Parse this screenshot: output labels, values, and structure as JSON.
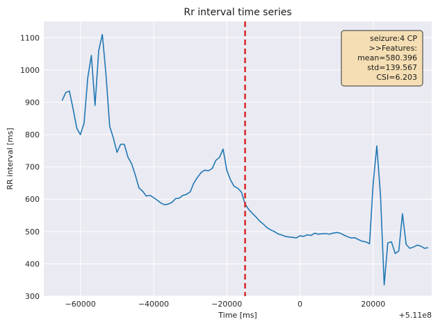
{
  "chart_data": {
    "type": "line",
    "title": "Rr interval time series",
    "xlabel": "Time [ms]",
    "ylabel": "RR interval [ms]",
    "x_offset_label": "+5.11e8",
    "xlim": [
      -70000,
      36000
    ],
    "ylim": [
      300,
      1150
    ],
    "xticks": [
      -60000,
      -40000,
      -20000,
      0,
      20000
    ],
    "xtick_labels": [
      "−60000",
      "−40000",
      "−20000",
      "0",
      "20000"
    ],
    "yticks": [
      300,
      400,
      500,
      600,
      700,
      800,
      900,
      1000,
      1100
    ],
    "ytick_labels": [
      "300",
      "400",
      "500",
      "600",
      "700",
      "800",
      "900",
      "1000",
      "1100"
    ],
    "grid": true,
    "background": "#eaeaf2",
    "line_color": "#1f77b4",
    "marker": {
      "x": -15000,
      "color": "#d62728",
      "style": "dashed"
    },
    "annotation": {
      "lines": [
        "seizure:4 CP",
        ">>Features:",
        "mean=580.396",
        "std=139.567",
        "CSI=6.203"
      ],
      "position": "top-right",
      "background": "#f5deb3"
    },
    "series": [
      {
        "x": [
          -65000,
          -64000,
          -63000,
          -62000,
          -61000,
          -60000,
          -59000,
          -58000,
          -57000,
          -56000,
          -55000,
          -54000,
          -53000,
          -52000,
          -51000,
          -50000,
          -49000,
          -48000,
          -47000,
          -46000,
          -45000,
          -44000,
          -43000,
          -42000,
          -41000,
          -40000,
          -39000,
          -38000,
          -37000,
          -36000,
          -35000,
          -34000,
          -33000,
          -32000,
          -31000,
          -30000,
          -29000,
          -28000,
          -27000,
          -26000,
          -25000,
          -24000,
          -23000,
          -22000,
          -21000,
          -20000,
          -19000,
          -18000,
          -17000,
          -16000,
          -15000,
          -14000,
          -13000,
          -12000,
          -11000,
          -10000,
          -9000,
          -8000,
          -7000,
          -6000,
          -5000,
          -4000,
          -3000,
          -2000,
          -1000,
          0,
          1000,
          2000,
          3000,
          4000,
          5000,
          6000,
          7000,
          8000,
          9000,
          10000,
          11000,
          12000,
          13000,
          14000,
          15000,
          16000,
          17000,
          18000,
          19000,
          20000,
          21000,
          22000,
          23000,
          24000,
          25000,
          26000,
          27000,
          28000,
          29000,
          30000,
          31000,
          32000,
          33000,
          34000,
          35000
        ],
        "y": [
          905,
          930,
          935,
          880,
          820,
          800,
          835,
          975,
          1045,
          890,
          1060,
          1110,
          985,
          825,
          790,
          745,
          770,
          770,
          730,
          710,
          675,
          635,
          625,
          610,
          612,
          605,
          597,
          588,
          583,
          585,
          590,
          602,
          603,
          612,
          615,
          623,
          650,
          668,
          683,
          690,
          688,
          695,
          720,
          730,
          755,
          690,
          660,
          640,
          634,
          622,
          585,
          568,
          556,
          545,
          532,
          523,
          512,
          505,
          500,
          493,
          489,
          485,
          483,
          482,
          480,
          487,
          485,
          490,
          488,
          495,
          492,
          493,
          494,
          492,
          495,
          497,
          495,
          489,
          484,
          480,
          481,
          475,
          470,
          468,
          462,
          650,
          765,
          612,
          335,
          465,
          468,
          432,
          440,
          555,
          460,
          448,
          452,
          458,
          455,
          448,
          450
        ]
      }
    ]
  }
}
